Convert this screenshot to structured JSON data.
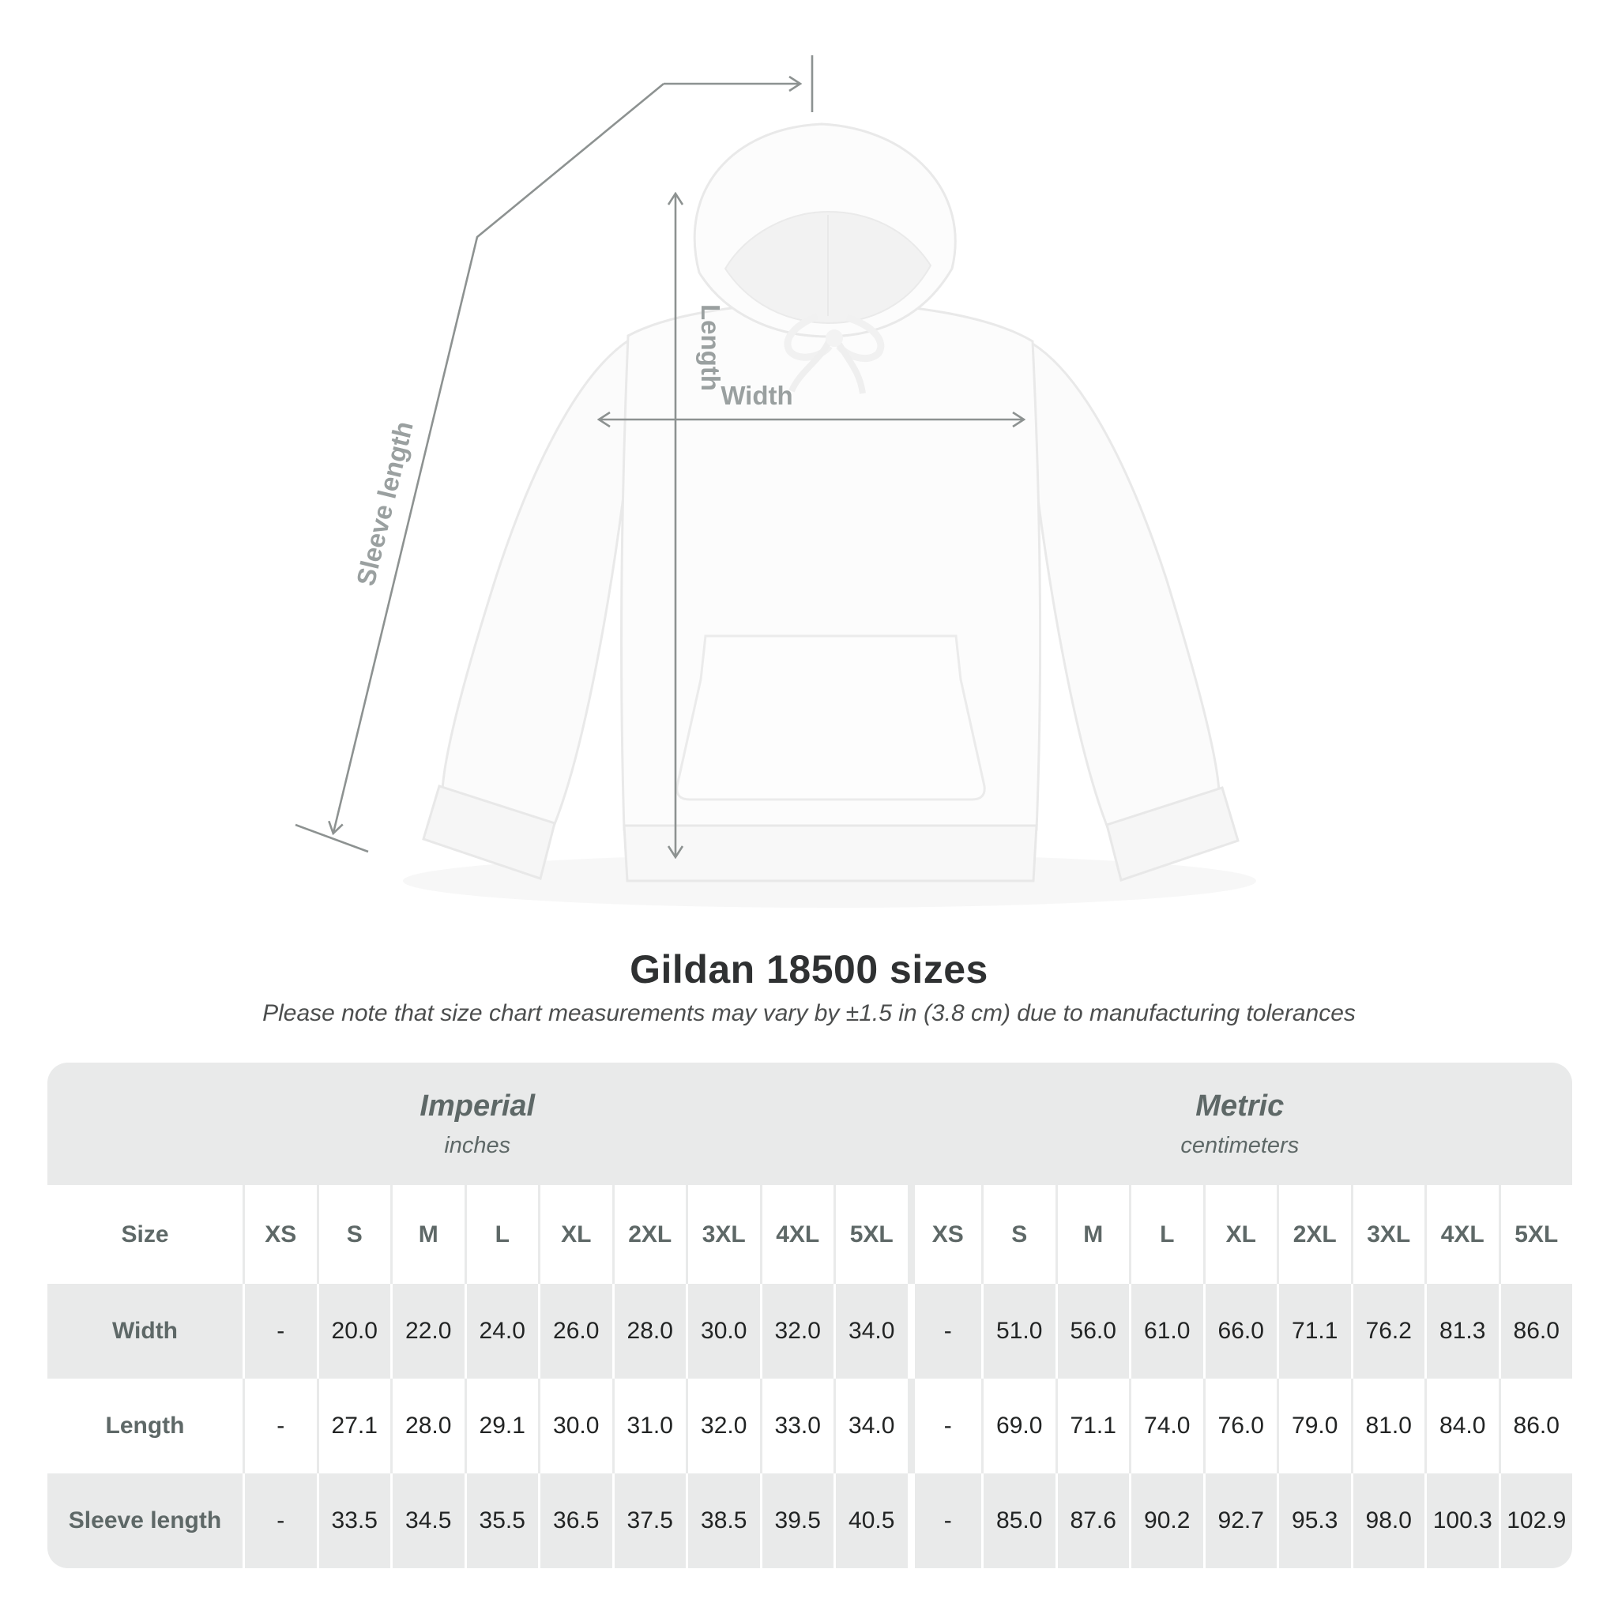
{
  "title": "Gildan 18500 sizes",
  "subtitle": "Please note that size chart measurements may vary by ±1.5 in (3.8 cm) due to manufacturing tolerances",
  "diagram": {
    "length_label": "Length",
    "width_label": "Width",
    "sleeve_label": "Sleeve length"
  },
  "table": {
    "sections": [
      {
        "label": "Imperial",
        "sublabel": "inches"
      },
      {
        "label": "Metric",
        "sublabel": "centimeters"
      }
    ],
    "size_col_header": "Size",
    "size_headers": [
      "XS",
      "S",
      "M",
      "L",
      "XL",
      "2XL",
      "3XL",
      "4XL",
      "5XL"
    ],
    "rows": [
      {
        "label": "Width",
        "imperial": [
          "-",
          "20.0",
          "22.0",
          "24.0",
          "26.0",
          "28.0",
          "30.0",
          "32.0",
          "34.0"
        ],
        "metric": [
          "-",
          "51.0",
          "56.0",
          "61.0",
          "66.0",
          "71.1",
          "76.2",
          "81.3",
          "86.0"
        ]
      },
      {
        "label": "Length",
        "imperial": [
          "-",
          "27.1",
          "28.0",
          "29.1",
          "30.0",
          "31.0",
          "32.0",
          "33.0",
          "34.0"
        ],
        "metric": [
          "-",
          "69.0",
          "71.1",
          "74.0",
          "76.0",
          "79.0",
          "81.0",
          "84.0",
          "86.0"
        ]
      },
      {
        "label": "Sleeve length",
        "imperial": [
          "-",
          "33.5",
          "34.5",
          "35.5",
          "36.5",
          "37.5",
          "38.5",
          "39.5",
          "40.5"
        ],
        "metric": [
          "-",
          "85.0",
          "87.6",
          "90.2",
          "92.7",
          "95.3",
          "98.0",
          "100.3",
          "102.9"
        ]
      }
    ]
  },
  "colors": {
    "table_band": "#e9eaea",
    "header_text": "#5e6867",
    "cell_text": "#222424",
    "diagram_line": "#8d9291",
    "diagram_label": "#9aa0a0",
    "title_text": "#2f3132"
  }
}
